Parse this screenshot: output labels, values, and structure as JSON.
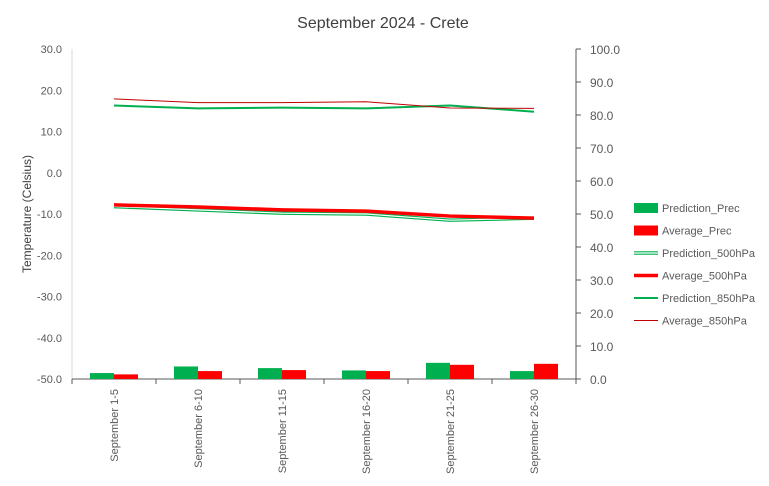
{
  "chart_data": {
    "type": "bar",
    "title": "September 2024 - Crete",
    "ylabel": "Temperature (Celsius)",
    "y2label": "",
    "xlabel": "",
    "ylim": [
      -50,
      30
    ],
    "y2lim": [
      0,
      100
    ],
    "yticks": [
      "30.0",
      "20.0",
      "10.0",
      "0.0",
      "-10.0",
      "-20.0",
      "-30.0",
      "-40.0",
      "-50.0"
    ],
    "y2ticks": [
      "100.0",
      "90.0",
      "80.0",
      "70.0",
      "60.0",
      "50.0",
      "40.0",
      "30.0",
      "20.0",
      "10.0",
      "0.0"
    ],
    "categories": [
      "September 1-5",
      "September 6-10",
      "September 11-15",
      "September 16-20",
      "September 21-25",
      "September 26-30"
    ],
    "grid": false,
    "legend_position": "right",
    "series": [
      {
        "name": "Prediction_Prec",
        "type": "bar",
        "axis": "right",
        "color": "#00b050",
        "values": [
          1.8,
          3.8,
          3.3,
          2.6,
          4.9,
          2.4
        ]
      },
      {
        "name": "Average_Prec",
        "type": "bar",
        "axis": "right",
        "color": "#ff0000",
        "values": [
          1.4,
          2.4,
          2.7,
          2.4,
          4.3,
          4.6
        ]
      },
      {
        "name": "Prediction_500hPa",
        "type": "line",
        "axis": "left",
        "color": "#00b050",
        "style": "outlined",
        "values": [
          -8.2,
          -9.0,
          -9.8,
          -10.0,
          -11.5,
          -11.0
        ]
      },
      {
        "name": "Average_500hPa",
        "type": "line",
        "axis": "left",
        "color": "#ff0000",
        "style": "thick",
        "values": [
          -7.8,
          -8.3,
          -9.0,
          -9.3,
          -10.5,
          -11.0
        ]
      },
      {
        "name": "Prediction_850hPa",
        "type": "line",
        "axis": "left",
        "color": "#00b050",
        "style": "normal",
        "values": [
          16.3,
          15.6,
          15.8,
          15.6,
          16.3,
          14.8
        ]
      },
      {
        "name": "Average_850hPa",
        "type": "line",
        "axis": "left",
        "color": "#c00000",
        "style": "thin",
        "values": [
          17.9,
          17.0,
          17.0,
          17.2,
          15.7,
          15.6
        ]
      }
    ]
  }
}
